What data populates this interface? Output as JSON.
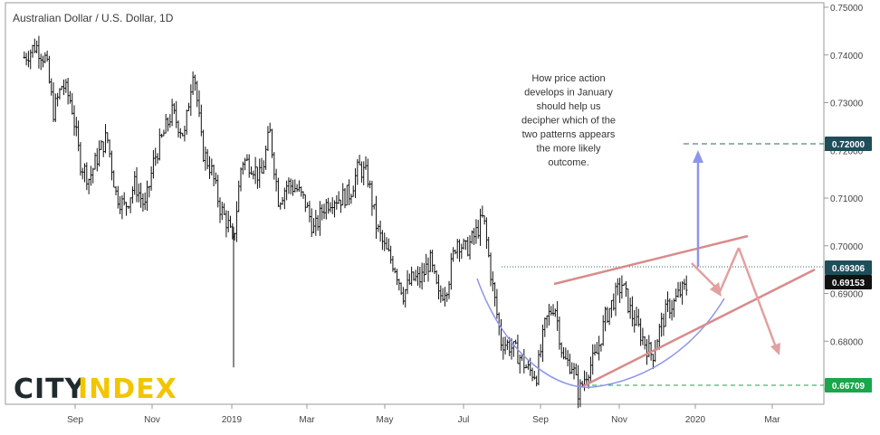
{
  "chart_data": {
    "type": "line",
    "title": "Australian Dollar / U.S. Dollar, 1D",
    "x_tick_labels": [
      "Sep",
      "Nov",
      "2019",
      "Mar",
      "May",
      "Jul",
      "Sep",
      "Nov",
      "2020",
      "Mar"
    ],
    "y_tick_labels": [
      "0.75000",
      "0.74000",
      "0.73000",
      "0.72000",
      "0.71000",
      "0.70000",
      "0.69000",
      "0.68000",
      "0.67000"
    ],
    "ylim": [
      0.6635,
      0.751
    ],
    "grid": false,
    "series": [
      {
        "name": "",
        "points": [
          [
            "2018-07-23",
            0.7395
          ],
          [
            "2018-08-01",
            0.742
          ],
          [
            "2018-08-09",
            0.739
          ],
          [
            "2018-08-15",
            0.728
          ],
          [
            "2018-08-22",
            0.734
          ],
          [
            "2018-08-29",
            0.73
          ],
          [
            "2018-09-05",
            0.7175
          ],
          [
            "2018-09-12",
            0.714
          ],
          [
            "2018-09-19",
            0.719
          ],
          [
            "2018-09-26",
            0.723
          ],
          [
            "2018-10-03",
            0.711
          ],
          [
            "2018-10-10",
            0.708
          ],
          [
            "2018-10-18",
            0.713
          ],
          [
            "2018-10-26",
            0.708
          ],
          [
            "2018-11-02",
            0.718
          ],
          [
            "2018-11-09",
            0.723
          ],
          [
            "2018-11-16",
            0.728
          ],
          [
            "2018-11-26",
            0.723
          ],
          [
            "2018-12-03",
            0.738
          ],
          [
            "2018-12-10",
            0.72
          ],
          [
            "2018-12-17",
            0.716
          ],
          [
            "2018-12-24",
            0.708
          ],
          [
            "2018-12-31",
            0.704
          ],
          [
            "2019-01-03",
            0.7
          ],
          [
            "2019-01-10",
            0.718
          ],
          [
            "2019-01-18",
            0.717
          ],
          [
            "2019-01-25",
            0.714
          ],
          [
            "2019-02-01",
            0.724
          ],
          [
            "2019-02-08",
            0.7095
          ],
          [
            "2019-02-15",
            0.713
          ],
          [
            "2019-02-22",
            0.712
          ],
          [
            "2019-03-01",
            0.709
          ],
          [
            "2019-03-08",
            0.703
          ],
          [
            "2019-03-15",
            0.708
          ],
          [
            "2019-03-22",
            0.71
          ],
          [
            "2019-03-29",
            0.71
          ],
          [
            "2019-04-05",
            0.711
          ],
          [
            "2019-04-12",
            0.7165
          ],
          [
            "2019-04-19",
            0.7145
          ],
          [
            "2019-04-26",
            0.704
          ],
          [
            "2019-05-03",
            0.699
          ],
          [
            "2019-05-10",
            0.696
          ],
          [
            "2019-05-17",
            0.69
          ],
          [
            "2019-05-24",
            0.693
          ],
          [
            "2019-05-31",
            0.693
          ],
          [
            "2019-06-07",
            0.697
          ],
          [
            "2019-06-14",
            0.689
          ],
          [
            "2019-06-21",
            0.692
          ],
          [
            "2019-06-28",
            0.7015
          ],
          [
            "2019-07-05",
            0.699
          ],
          [
            "2019-07-12",
            0.702
          ],
          [
            "2019-07-19",
            0.706
          ],
          [
            "2019-07-26",
            0.692
          ],
          [
            "2019-08-02",
            0.68
          ],
          [
            "2019-08-09",
            0.679
          ],
          [
            "2019-08-16",
            0.677
          ],
          [
            "2019-08-23",
            0.674
          ],
          [
            "2019-08-30",
            0.673
          ],
          [
            "2019-09-06",
            0.684
          ],
          [
            "2019-09-13",
            0.688
          ],
          [
            "2019-09-20",
            0.676
          ],
          [
            "2019-09-27",
            0.675
          ],
          [
            "2019-10-02",
            0.669
          ],
          [
            "2019-10-09",
            0.674
          ],
          [
            "2019-10-16",
            0.677
          ],
          [
            "2019-10-23",
            0.685
          ],
          [
            "2019-10-30",
            0.689
          ],
          [
            "2019-11-05",
            0.692
          ],
          [
            "2019-11-12",
            0.686
          ],
          [
            "2019-11-19",
            0.682
          ],
          [
            "2019-11-26",
            0.678
          ],
          [
            "2019-11-29",
            0.677
          ],
          [
            "2019-12-04",
            0.682
          ],
          [
            "2019-12-11",
            0.687
          ],
          [
            "2019-12-16",
            0.688
          ],
          [
            "2019-12-20",
            0.69
          ],
          [
            "2019-12-27",
            0.6915
          ]
        ]
      }
    ],
    "annotations": {
      "note": "How price action\ndevelops in January\nshould help us\ndecipher which of the\ntwo patterns appears\nthe more likely\noutcome.",
      "levels": [
        {
          "value": 0.72,
          "label": "0.72000",
          "color": "#1f4e5a",
          "style": "dashed-teal"
        },
        {
          "value": 0.69306,
          "label": "0.69306",
          "color": "#1f4e5a",
          "style": "dotted-teal"
        },
        {
          "value": 0.69153,
          "label": "0.69153",
          "color": "#111111",
          "style": "none"
        },
        {
          "value": 0.66709,
          "label": "0.66709",
          "color": "#1aa64a",
          "style": "dashed-green"
        }
      ]
    }
  },
  "logo": {
    "part1": "CITY",
    "part2": "INDEX"
  },
  "colors": {
    "candle": "#111111",
    "wedge": "#d98b8b",
    "arc": "#8f95e8",
    "up_arrow": "#8f95e8",
    "down_arrow": "#e2a0a0",
    "logo_city": "#1f2b2e",
    "logo_index": "#f2c500"
  }
}
